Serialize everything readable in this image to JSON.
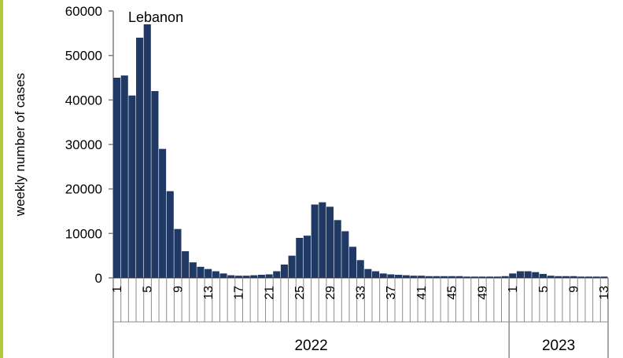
{
  "chart_data": {
    "type": "bar",
    "title": "Lebanon",
    "ylabel": "weekly number of cases",
    "xlabel": "",
    "ylim": [
      0,
      60000
    ],
    "yticks": [
      0,
      10000,
      20000,
      30000,
      40000,
      50000,
      60000
    ],
    "grid": false,
    "legend": "none",
    "bar_color": "#1f3864",
    "accent_color": "#b5c93a",
    "years": [
      {
        "label": "2022",
        "weeks": 52
      },
      {
        "label": "2023",
        "weeks": 13
      }
    ],
    "x_tick_labels": [
      "1",
      "5",
      "9",
      "13",
      "17",
      "21",
      "25",
      "29",
      "33",
      "37",
      "41",
      "45",
      "49",
      "1",
      "5",
      "9",
      "13"
    ],
    "series": [
      {
        "values": [
          45000,
          45500,
          41000,
          54000,
          57000,
          42000,
          29000,
          19500,
          11000,
          6000,
          3500,
          2500,
          2000,
          1500,
          1000,
          600,
          500,
          500,
          600,
          700,
          800,
          1500,
          3000,
          5000,
          9000,
          9500,
          16500,
          17000,
          16000,
          13000,
          10500,
          7000,
          4000,
          2000,
          1500,
          1000,
          800,
          700,
          600,
          500,
          500,
          400,
          400,
          400,
          400,
          400,
          300,
          300,
          300,
          300,
          300,
          400,
          1000,
          1500,
          1500,
          1300,
          900,
          500,
          400,
          400,
          400,
          300,
          300,
          300,
          300
        ]
      }
    ]
  }
}
